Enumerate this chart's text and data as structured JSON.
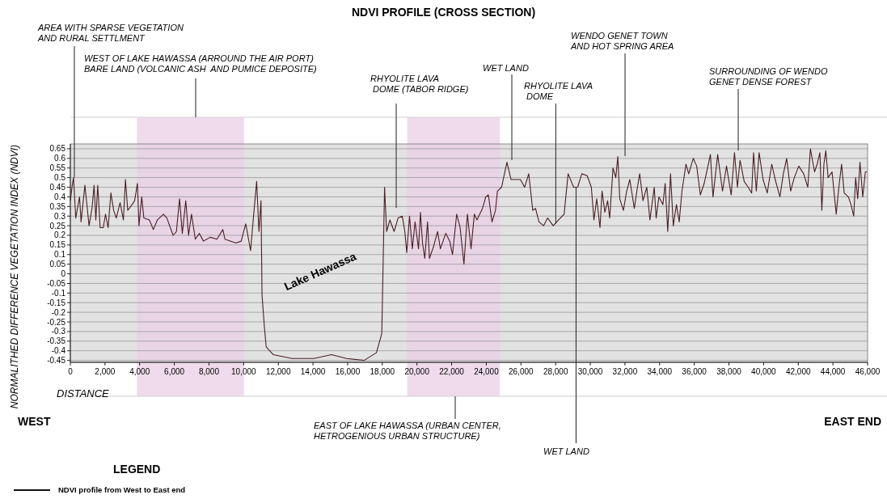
{
  "chart_data": {
    "type": "line",
    "title": "NDVI PROFILE (CROSS SECTION)",
    "xlabel": "DISTANCE",
    "ylabel": "NORMALITHED DIFFERENCE VEGETATION INDEX (NDVI)",
    "legend_title": "LEGEND",
    "legend": "bottom left",
    "grid": "y",
    "xlim": [
      0,
      46000
    ],
    "ylim": [
      -0.46,
      0.675
    ],
    "xticks": [
      0,
      {
        "value": 2000,
        "label": "2,000"
      },
      {
        "value": 4000,
        "label": "4,000"
      },
      {
        "value": 6000,
        "label": "6,000"
      },
      {
        "value": 8000,
        "label": "8,000"
      },
      {
        "value": 10000,
        "label": "10,000"
      },
      {
        "value": 12000,
        "label": "12,000"
      },
      {
        "value": 14000,
        "label": "14,000"
      },
      {
        "value": 16000,
        "label": "16,000"
      },
      {
        "value": 18000,
        "label": "18,000"
      },
      {
        "value": 20000,
        "label": "20,000"
      },
      {
        "value": 22000,
        "label": "22,000"
      },
      {
        "value": 24000,
        "label": "24,000"
      },
      {
        "value": 26000,
        "label": "26,000"
      },
      {
        "value": 28000,
        "label": "28,000"
      },
      {
        "value": 30000,
        "label": "30,000"
      },
      {
        "value": 32000,
        "label": "32,000"
      },
      {
        "value": 34000,
        "label": "34,000"
      },
      {
        "value": 36000,
        "label": "36,000"
      },
      {
        "value": 38000,
        "label": "38,000"
      },
      {
        "value": 40000,
        "label": "40,000"
      },
      {
        "value": 42000,
        "label": "42,000"
      },
      {
        "value": 44000,
        "label": "44,000"
      },
      {
        "value": 46000,
        "label": "46,000"
      }
    ],
    "yticks": [
      -0.45,
      -0.4,
      -0.35,
      -0.3,
      -0.25,
      -0.2,
      -0.15,
      -0.1,
      -0.05,
      0,
      0.05,
      0.1,
      0.15,
      0.2,
      0.25,
      0.3,
      0.35,
      0.4,
      0.45,
      0.5,
      0.55,
      0.6,
      0.65
    ],
    "bands": [
      {
        "axis": "x",
        "from": 3840,
        "to": 10020,
        "color": "#e9cfe6"
      },
      {
        "axis": "x",
        "from": 19440,
        "to": 24780,
        "color": "#e9cfe6"
      }
    ],
    "annotations": [
      {
        "text": "AREA WITH SPARSE VEGETATION\nAND RURAL SETTLMENT",
        "x": 230,
        "y": 0.5
      },
      "WEST OF LAKE HAWASSA (ARROUND THE AIR PORT)\nBARE LAND (VOLCANIC ASH  AND PUMICE DEPOSITE)",
      "RHYOLITE LAVA\n DOME (TABOR RIDGE)",
      "WET LAND",
      {
        "text": "RHYOLITE LAVA\n DOME",
        "x": 28010,
        "y": 0.26
      },
      "WENDO GENET TOWN\nAND HOT SPRING AREA",
      "SURROUNDING OF WENDO\nGENET DENSE FOREST",
      "EAST OF LAKE HAWASSA (URBAN CENTER,\nHETROGENIOUS URBAN STRUCTURE)",
      {
        "text": "WET LAND",
        "x": 29180,
        "y": 0.45
      },
      "Lake Hawassa",
      "WEST",
      "EAST END"
    ],
    "series": [
      {
        "name": "NDVI profile from West to East end",
        "color": "#4a1f24",
        "x": [
          0,
          110,
          185,
          310,
          530,
          620,
          840,
          1080,
          1250,
          1370,
          1470,
          1580,
          1720,
          1900,
          2030,
          2180,
          2340,
          2500,
          2650,
          2870,
          3060,
          3180,
          3310,
          3560,
          3710,
          3870,
          3960,
          4120,
          4240,
          4560,
          4790,
          5020,
          5370,
          5570,
          5930,
          6120,
          6300,
          6460,
          6660,
          6820,
          6990,
          7210,
          7440,
          7680,
          8070,
          8460,
          8800,
          8920,
          9550,
          9860,
          10120,
          10400,
          10560,
          10750,
          10880,
          11000,
          11060,
          11190,
          11300,
          11700,
          12790,
          14050,
          15070,
          15930,
          16950,
          17660,
          17970,
          18130,
          18250,
          18440,
          18680,
          18910,
          19150,
          19300,
          19410,
          19570,
          19730,
          19890,
          20090,
          20200,
          20320,
          20450,
          20610,
          20720,
          20950,
          21190,
          21350,
          21660,
          21890,
          22050,
          22290,
          22490,
          22710,
          22910,
          23120,
          23310,
          23460,
          23780,
          23970,
          24120,
          24330,
          24530,
          24640,
          24880,
          25190,
          25430,
          25740,
          25970,
          26210,
          26450,
          26680,
          26840,
          27040,
          27310,
          27540,
          27860,
          28170,
          28490,
          28720,
          29040,
          29270,
          29510,
          29820,
          30060,
          30210,
          30370,
          30560,
          30680,
          30840,
          31000,
          31120,
          31310,
          31470,
          31590,
          31700,
          31910,
          32100,
          32280,
          32540,
          32720,
          32850,
          33040,
          33260,
          33440,
          33690,
          33800,
          33960,
          34190,
          34320,
          34470,
          34630,
          34790,
          34970,
          35130,
          35290,
          35520,
          35680,
          35940,
          36140,
          36350,
          36570,
          36720,
          36930,
          37080,
          37350,
          37630,
          37860,
          38130,
          38320,
          38490,
          38640,
          38880,
          39110,
          39310,
          39420,
          39580,
          39740,
          39970,
          40210,
          40470,
          40670,
          40940,
          41140,
          41330,
          41560,
          41770,
          42030,
          42310,
          42550,
          42700,
          42940,
          43090,
          43250,
          43360,
          43480,
          43590,
          43720,
          43950,
          44190,
          44340,
          44500,
          44650,
          44890,
          45040,
          45200,
          45310,
          45430,
          45560,
          45720,
          45870,
          45970
        ],
        "values": [
          0.38,
          0.46,
          0.5,
          0.29,
          0.4,
          0.27,
          0.46,
          0.25,
          0.34,
          0.46,
          0.28,
          0.46,
          0.24,
          0.24,
          0.31,
          0.24,
          0.42,
          0.33,
          0.29,
          0.37,
          0.28,
          0.49,
          0.33,
          0.36,
          0.38,
          0.47,
          0.25,
          0.4,
          0.29,
          0.28,
          0.23,
          0.28,
          0.31,
          0.29,
          0.2,
          0.22,
          0.39,
          0.21,
          0.38,
          0.2,
          0.31,
          0.18,
          0.21,
          0.17,
          0.19,
          0.18,
          0.23,
          0.18,
          0.16,
          0.17,
          0.26,
          0.12,
          0.29,
          0.48,
          0.22,
          0.38,
          -0.11,
          -0.27,
          -0.38,
          -0.42,
          -0.44,
          -0.44,
          -0.42,
          -0.44,
          -0.45,
          -0.41,
          -0.31,
          0.45,
          0.22,
          0.28,
          0.22,
          0.29,
          0.3,
          0.22,
          0.11,
          0.3,
          0.13,
          0.27,
          0.13,
          0.32,
          0.16,
          0.08,
          0.27,
          0.08,
          0.14,
          0.22,
          0.13,
          0.21,
          0.17,
          0.1,
          0.31,
          0.24,
          0.05,
          0.31,
          0.13,
          0.31,
          0.28,
          0.34,
          0.4,
          0.41,
          0.27,
          0.33,
          0.43,
          0.45,
          0.58,
          0.49,
          0.49,
          0.49,
          0.45,
          0.52,
          0.33,
          0.34,
          0.27,
          0.25,
          0.29,
          0.25,
          0.28,
          0.31,
          0.52,
          0.45,
          0.45,
          0.52,
          0.51,
          0.45,
          0.28,
          0.39,
          0.24,
          0.43,
          0.32,
          0.38,
          0.29,
          0.55,
          0.5,
          0.61,
          0.39,
          0.33,
          0.43,
          0.49,
          0.34,
          0.45,
          0.52,
          0.38,
          0.45,
          0.28,
          0.45,
          0.29,
          0.4,
          0.36,
          0.47,
          0.22,
          0.52,
          0.25,
          0.36,
          0.27,
          0.43,
          0.57,
          0.52,
          0.6,
          0.56,
          0.41,
          0.47,
          0.53,
          0.62,
          0.4,
          0.62,
          0.43,
          0.56,
          0.41,
          0.63,
          0.45,
          0.59,
          0.48,
          0.45,
          0.42,
          0.63,
          0.43,
          0.63,
          0.49,
          0.42,
          0.57,
          0.49,
          0.4,
          0.52,
          0.6,
          0.43,
          0.5,
          0.56,
          0.52,
          0.45,
          0.65,
          0.53,
          0.57,
          0.63,
          0.33,
          0.57,
          0.64,
          0.5,
          0.53,
          0.31,
          0.45,
          0.57,
          0.42,
          0.4,
          0.36,
          0.3,
          0.5,
          0.39,
          0.58,
          0.4,
          0.53,
          0.53
        ]
      }
    ]
  }
}
